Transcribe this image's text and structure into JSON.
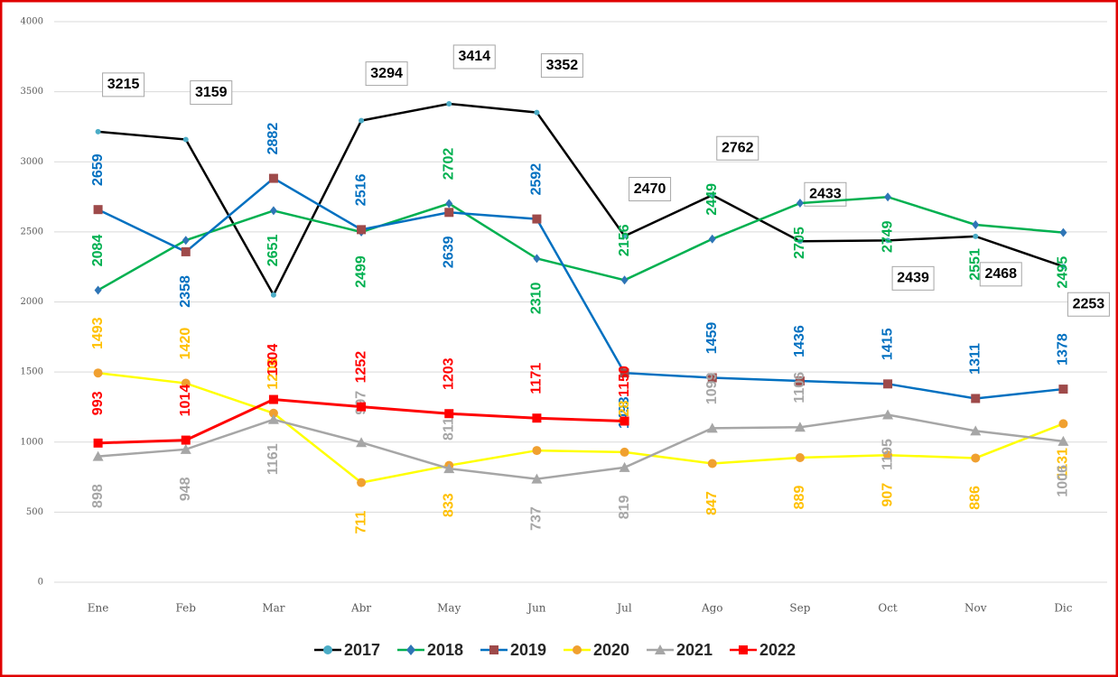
{
  "chart_data": {
    "type": "line",
    "categories": [
      "Ene",
      "Feb",
      "Mar",
      "Abr",
      "May",
      "Jun",
      "Jul",
      "Ago",
      "Sep",
      "Oct",
      "Nov",
      "Dic"
    ],
    "ylim": [
      0,
      4000
    ],
    "yticks": [
      0,
      500,
      1000,
      1500,
      2000,
      2500,
      3000,
      3500,
      4000
    ],
    "grid": true,
    "legend": "bottom",
    "series": [
      {
        "name": "2017",
        "color": "#000000",
        "marker_color": "#4bacc6",
        "label_color": "#000000",
        "marker": "circle",
        "values": [
          3215,
          3159,
          2050,
          3294,
          3414,
          3352,
          2470,
          2762,
          2433,
          2439,
          2468,
          2253
        ],
        "value_labels": [
          "3215",
          "3159",
          null,
          "3294",
          "3414",
          "3352",
          "2470",
          "2762",
          "2433",
          "2439",
          "2468",
          "2253"
        ]
      },
      {
        "name": "2018",
        "color": "#00b050",
        "marker_color": "#2e75b6",
        "label_color": "#00b050",
        "marker": "diamond",
        "values": [
          2084,
          2440,
          2651,
          2499,
          2702,
          2310,
          2156,
          2449,
          2705,
          2749,
          2551,
          2495
        ],
        "value_labels": [
          "2084",
          null,
          "2651",
          "2499",
          "2702",
          "2310",
          "2156",
          "2449",
          "2705",
          "2749",
          "2551",
          "2495"
        ]
      },
      {
        "name": "2019",
        "color": "#0070c0",
        "marker_color": "#9e4a4a",
        "label_color": "#0070c0",
        "marker": "square",
        "values": [
          2659,
          2358,
          2882,
          2516,
          2639,
          2592,
          1493,
          1459,
          1436,
          1415,
          1311,
          1378
        ],
        "value_labels": [
          "2659",
          "2358",
          "2882",
          "2516",
          "2639",
          "2592",
          "1493",
          "1459",
          "1436",
          "1415",
          "1311",
          "1378"
        ]
      },
      {
        "name": "2020",
        "color": "#ffff00",
        "marker_color": "#f0a030",
        "label_color": "#ffc000",
        "marker": "circle",
        "values": [
          1493,
          1420,
          1206,
          711,
          833,
          940,
          928,
          847,
          889,
          907,
          886,
          1131
        ],
        "value_labels": [
          "1493",
          "1420",
          "1206",
          "711",
          "833",
          null,
          "928",
          "847",
          "889",
          "907",
          "886",
          "1131"
        ]
      },
      {
        "name": "2021",
        "color": "#a6a6a6",
        "marker_color": "#a6a6a6",
        "label_color": "#a6a6a6",
        "marker": "triangle",
        "values": [
          898,
          948,
          1161,
          997,
          811,
          737,
          819,
          1099,
          1106,
          1195,
          1080,
          1006
        ],
        "value_labels": [
          "898",
          "948",
          "1161",
          "997",
          "811",
          "737",
          "819",
          "1099",
          "1106",
          "1195",
          null,
          "1006"
        ]
      },
      {
        "name": "2022",
        "color": "#ff0000",
        "marker_color": "#ff0000",
        "label_color": "#ff0000",
        "marker": "square",
        "values": [
          993,
          1014,
          1304,
          1252,
          1203,
          1171,
          1150,
          null,
          null,
          null,
          null,
          null
        ],
        "value_labels": [
          "993",
          "1014",
          "1304",
          "1252",
          "1203",
          "1171",
          "1150",
          null,
          null,
          null,
          null,
          null
        ]
      }
    ]
  }
}
